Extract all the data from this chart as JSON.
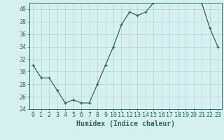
{
  "x": [
    0,
    1,
    2,
    3,
    4,
    5,
    6,
    7,
    8,
    9,
    10,
    11,
    12,
    13,
    14,
    15,
    16,
    17,
    18,
    19,
    20,
    21,
    22,
    23
  ],
  "y": [
    31,
    29,
    29,
    27,
    25,
    25.5,
    25,
    25,
    28,
    31,
    34,
    37.5,
    39.5,
    39,
    39.5,
    41,
    42,
    41.5,
    42,
    41.5,
    41.5,
    41,
    37,
    34
  ],
  "line_color": "#2d6b5e",
  "marker": "+",
  "marker_color": "#2d6b5e",
  "bg_color": "#d6efef",
  "grid_color": "#b0d4d4",
  "tick_color": "#2d6b5e",
  "xlabel": "Humidex (Indice chaleur)",
  "ylim": [
    24,
    41
  ],
  "yticks": [
    24,
    26,
    28,
    30,
    32,
    34,
    36,
    38,
    40
  ],
  "xticks": [
    0,
    1,
    2,
    3,
    4,
    5,
    6,
    7,
    8,
    9,
    10,
    11,
    12,
    13,
    14,
    15,
    16,
    17,
    18,
    19,
    20,
    21,
    22,
    23
  ],
  "font_size": 6.0,
  "label_font_size": 7.0
}
